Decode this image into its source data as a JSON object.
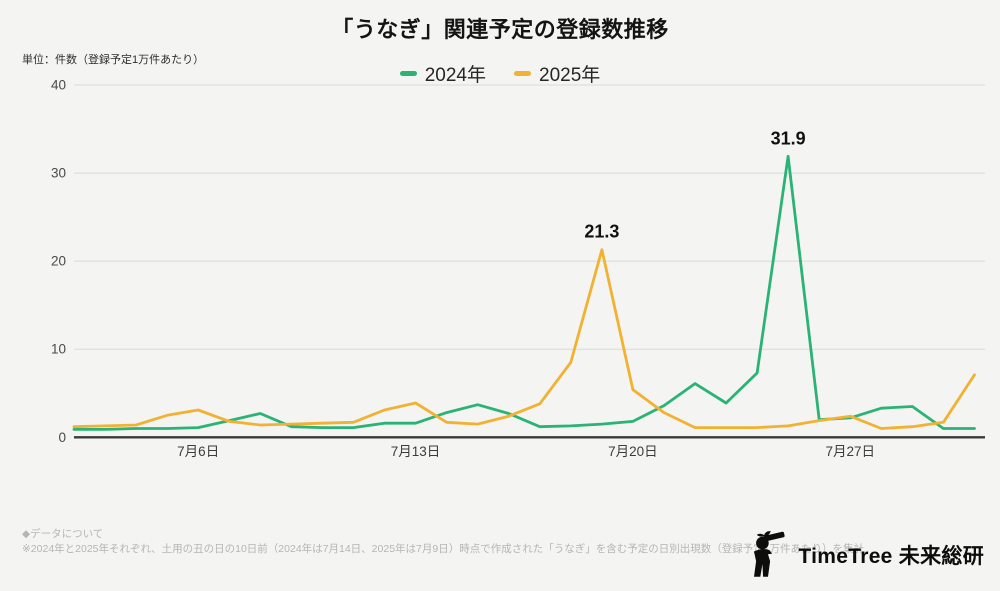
{
  "header": {
    "title": "「うなぎ」関連予定の登録数推移",
    "unit_label": "単位：件数（登録予定1万件あたり）"
  },
  "chart_data": {
    "type": "line",
    "title": "「うなぎ」関連予定の登録数推移",
    "ylabel": "件数（登録予定1万件あたり）",
    "xlabel": "",
    "ylim": [
      0,
      40
    ],
    "yticks": [
      0,
      10,
      20,
      30,
      40
    ],
    "grid": "horizontal",
    "legend_position": "top-center",
    "x": [
      "7月2日",
      "7月3日",
      "7月4日",
      "7月5日",
      "7月6日",
      "7月7日",
      "7月8日",
      "7月9日",
      "7月10日",
      "7月11日",
      "7月12日",
      "7月13日",
      "7月14日",
      "7月15日",
      "7月16日",
      "7月17日",
      "7月18日",
      "7月19日",
      "7月20日",
      "7月21日",
      "7月22日",
      "7月23日",
      "7月24日",
      "7月25日",
      "7月26日",
      "7月27日",
      "7月28日",
      "7月29日",
      "7月30日",
      "7月31日"
    ],
    "x_ticks_visible": [
      "7月6日",
      "7月13日",
      "7月20日",
      "7月27日"
    ],
    "series": [
      {
        "name": "2024年",
        "color": "#2ab374",
        "values": [
          0.9,
          0.9,
          1.0,
          1.0,
          1.1,
          1.9,
          2.7,
          1.2,
          1.1,
          1.1,
          1.6,
          1.6,
          2.8,
          3.7,
          2.7,
          1.2,
          1.3,
          1.5,
          1.8,
          3.6,
          6.1,
          3.9,
          7.3,
          31.9,
          2.0,
          2.2,
          3.3,
          3.5,
          1.0,
          1.0
        ]
      },
      {
        "name": "2025年",
        "color": "#f1b233",
        "values": [
          1.2,
          1.3,
          1.4,
          2.5,
          3.1,
          1.8,
          1.4,
          1.5,
          1.6,
          1.7,
          3.1,
          3.9,
          1.7,
          1.5,
          2.4,
          3.8,
          8.5,
          21.3,
          5.4,
          2.8,
          1.1,
          1.1,
          1.1,
          1.3,
          1.9,
          2.4,
          1.0,
          1.2,
          1.7,
          7.1
        ]
      }
    ],
    "annotations": [
      {
        "series": "2025年",
        "x": "7月19日",
        "value": 21.3,
        "label": "21.3"
      },
      {
        "series": "2024年",
        "x": "7月25日",
        "value": 31.9,
        "label": "31.9"
      }
    ]
  },
  "footer": {
    "note_heading": "◆データについて",
    "note_body": "※2024年と2025年それぞれ、土用の丑の日の10日前（2024年は7月14日、2025年は7月9日）時点で作成された「うなぎ」を含む予定の日別出現数（登録予定1万件あたり）を集計",
    "logo_text": "TimeTree 未来総研"
  }
}
